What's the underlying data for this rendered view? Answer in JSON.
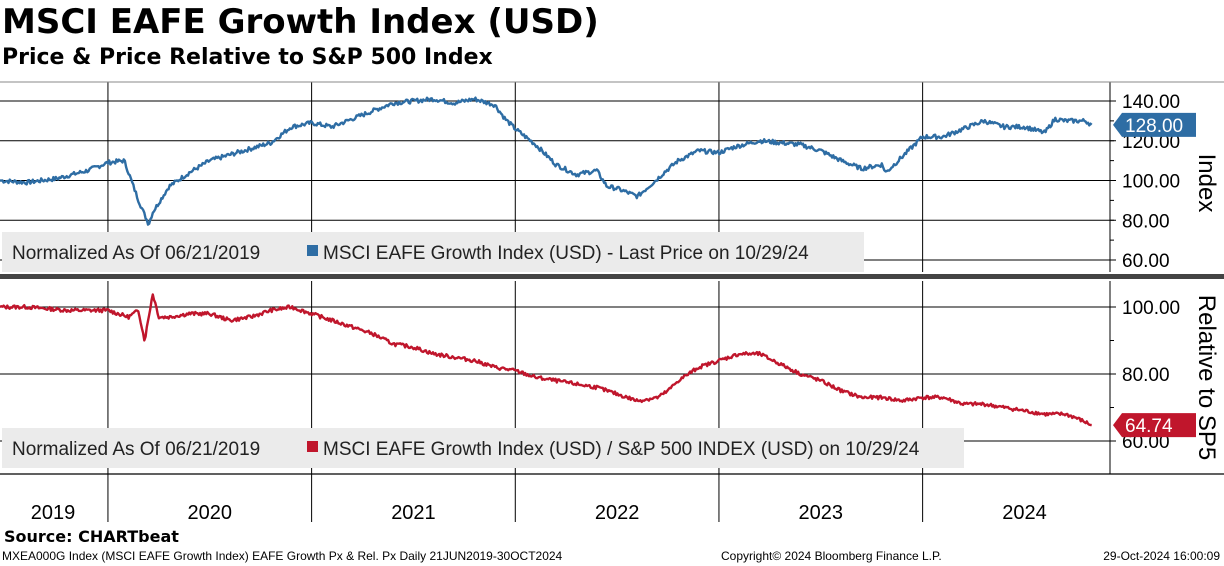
{
  "header": {
    "title": "MSCI EAFE Growth Index (USD)",
    "subtitle": "Price & Price Relative to S&P 500 Index"
  },
  "footer": {
    "source": "Source: CHARTbeat",
    "left": "MXEA000G Index (MSCI EAFE Growth Index) EAFE Growth Px & Rel. Px  Daily 21JUN2019-30OCT2024",
    "center": "Copyright© 2024 Bloomberg Finance L.P.",
    "right": "29-Oct-2024 16:00:09"
  },
  "colors": {
    "price": "#2E6DA4",
    "relative": "#C0162C",
    "grid": "#000000",
    "legend_bg": "#EBEBEB"
  },
  "chart_data": [
    {
      "type": "line",
      "name": "upper",
      "ylabel": "Index",
      "ylim": [
        60,
        140
      ],
      "yticks": [
        "60.00",
        "80.00",
        "100.00",
        "120.00",
        "140.00"
      ],
      "legend": {
        "prefix": "Normalized As Of 06/21/2019",
        "series_label": "MSCI EAFE Growth Index (USD) - Last Price on 10/29/24"
      },
      "last_value_label": "128.00",
      "series": [
        {
          "x": [
            2019.47,
            2019.6,
            2019.75,
            2019.9,
            2020.0,
            2020.08,
            2020.15,
            2020.2,
            2020.22,
            2020.3,
            2020.4,
            2020.5,
            2020.6,
            2020.7,
            2020.8,
            2020.9,
            2021.0,
            2021.1,
            2021.2,
            2021.3,
            2021.4,
            2021.5,
            2021.6,
            2021.7,
            2021.8,
            2021.9,
            2021.95,
            2022.0,
            2022.1,
            2022.2,
            2022.3,
            2022.4,
            2022.45,
            2022.5,
            2022.6,
            2022.7,
            2022.73,
            2022.8,
            2022.9,
            2023.0,
            2023.08,
            2023.2,
            2023.3,
            2023.4,
            2023.5,
            2023.6,
            2023.7,
            2023.8,
            2023.82,
            2023.9,
            2024.0,
            2024.1,
            2024.2,
            2024.3,
            2024.4,
            2024.5,
            2024.6,
            2024.65,
            2024.7,
            2024.8,
            2024.83
          ],
          "y": [
            100,
            99,
            101,
            105,
            109,
            110,
            90,
            78,
            84,
            97,
            104,
            110,
            113,
            116,
            119,
            127,
            129,
            127,
            131,
            135,
            139,
            140,
            141,
            139,
            141,
            138,
            131,
            126,
            118,
            108,
            103,
            105,
            97,
            96,
            92,
            101,
            104,
            110,
            115,
            114,
            117,
            120,
            119,
            118,
            115,
            110,
            106,
            108,
            104,
            112,
            122,
            122,
            126,
            130,
            127,
            127,
            124,
            131,
            130,
            130,
            128
          ]
        }
      ]
    },
    {
      "type": "line",
      "name": "lower",
      "ylabel": "Relative to SP5",
      "ylim": [
        60,
        102
      ],
      "yticks": [
        "60.00",
        "80.00",
        "100.00"
      ],
      "legend": {
        "prefix": "Normalized As Of 06/21/2019",
        "series_label": "MSCI EAFE Growth Index (USD) / S&P 500 INDEX (USD) on 10/29/24"
      },
      "last_value_label": "64.74",
      "series": [
        {
          "x": [
            2019.47,
            2019.6,
            2019.8,
            2020.0,
            2020.1,
            2020.15,
            2020.18,
            2020.2,
            2020.22,
            2020.25,
            2020.3,
            2020.4,
            2020.5,
            2020.6,
            2020.7,
            2020.8,
            2020.9,
            2021.0,
            2021.1,
            2021.2,
            2021.3,
            2021.4,
            2021.5,
            2021.6,
            2021.7,
            2021.8,
            2021.9,
            2022.0,
            2022.1,
            2022.2,
            2022.3,
            2022.4,
            2022.5,
            2022.6,
            2022.7,
            2022.75,
            2022.8,
            2022.9,
            2022.95,
            2023.0,
            2023.1,
            2023.2,
            2023.3,
            2023.4,
            2023.5,
            2023.6,
            2023.7,
            2023.8,
            2023.9,
            2024.0,
            2024.1,
            2024.2,
            2024.3,
            2024.4,
            2024.5,
            2024.6,
            2024.7,
            2024.75,
            2024.83
          ],
          "y": [
            100,
            100,
            99,
            99,
            97,
            99,
            90,
            97,
            104,
            97,
            97,
            98,
            98,
            96,
            97,
            99,
            100,
            98,
            96,
            94,
            92,
            89,
            88,
            86,
            85,
            84,
            82,
            81,
            79,
            78,
            77,
            76,
            74,
            72,
            73,
            75,
            78,
            82,
            83,
            84,
            86,
            86,
            83,
            80,
            78,
            75,
            73,
            73,
            72,
            73,
            73,
            71,
            71,
            70,
            69,
            68,
            68,
            67,
            64.74
          ]
        }
      ]
    }
  ],
  "x_axis": {
    "range": [
      2019.47,
      2024.92
    ],
    "year_boundaries": [
      2020,
      2021,
      2022,
      2023,
      2024
    ],
    "labels": [
      {
        "text": "2019",
        "x": 2019.73
      },
      {
        "text": "2020",
        "x": 2020.5
      },
      {
        "text": "2021",
        "x": 2021.5
      },
      {
        "text": "2022",
        "x": 2022.5
      },
      {
        "text": "2023",
        "x": 2023.5
      },
      {
        "text": "2024",
        "x": 2024.5
      }
    ]
  }
}
